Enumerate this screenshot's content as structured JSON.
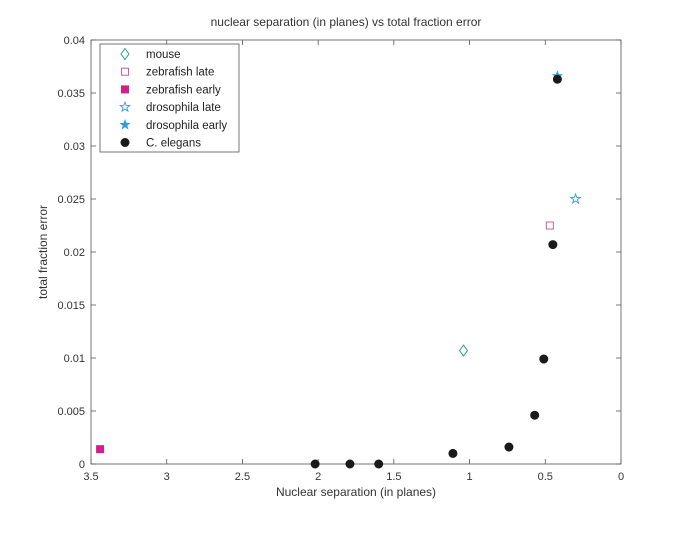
{
  "chart_data": {
    "type": "scatter",
    "title": "nuclear separation (in planes) vs total fraction error",
    "xlabel": "Nuclear separation (in planes)",
    "ylabel": "total fraction error",
    "xlim": [
      3.5,
      0
    ],
    "x_reversed": true,
    "ylim": [
      0,
      0.04
    ],
    "x_ticks": [
      3.5,
      3,
      2.5,
      2,
      1.5,
      1,
      0.5,
      0
    ],
    "x_tick_labels": [
      "3.5",
      "3",
      "2.5",
      "2",
      "1.5",
      "1",
      "0.5",
      "0"
    ],
    "y_ticks": [
      0,
      0.005,
      0.01,
      0.015,
      0.02,
      0.025,
      0.03,
      0.035,
      0.04
    ],
    "y_tick_labels": [
      "0",
      "0.005",
      "0.01",
      "0.015",
      "0.02",
      "0.025",
      "0.03",
      "0.035",
      "0.04"
    ],
    "grid": false,
    "legend_position": "top-left",
    "series": [
      {
        "name": "mouse",
        "marker": "diamond-open",
        "color": "#2ca58d",
        "points": [
          {
            "x": 1.04,
            "y": 0.0107
          }
        ]
      },
      {
        "name": "zebrafish late",
        "marker": "square-open",
        "color": "#c060a0",
        "points": [
          {
            "x": 0.47,
            "y": 0.0225
          }
        ]
      },
      {
        "name": "zebrafish early",
        "marker": "square-filled",
        "color": "#d0208a",
        "points": [
          {
            "x": 3.44,
            "y": 0.0014
          }
        ]
      },
      {
        "name": "drosophila late",
        "marker": "star-open",
        "color": "#2a9fd6",
        "points": [
          {
            "x": 0.3,
            "y": 0.025
          }
        ]
      },
      {
        "name": "drosophila early",
        "marker": "star-filled",
        "color": "#2a9fd6",
        "points": [
          {
            "x": 0.42,
            "y": 0.0366
          }
        ]
      },
      {
        "name": "C. elegans",
        "marker": "circle-filled",
        "color": "#1a1a1a",
        "points": [
          {
            "x": 2.02,
            "y": 0.0
          },
          {
            "x": 1.79,
            "y": 0.0
          },
          {
            "x": 1.6,
            "y": 0.0
          },
          {
            "x": 1.11,
            "y": 0.001
          },
          {
            "x": 0.74,
            "y": 0.0016
          },
          {
            "x": 0.57,
            "y": 0.0046
          },
          {
            "x": 0.51,
            "y": 0.0099
          },
          {
            "x": 0.45,
            "y": 0.0207
          },
          {
            "x": 0.42,
            "y": 0.0363
          }
        ]
      }
    ]
  }
}
